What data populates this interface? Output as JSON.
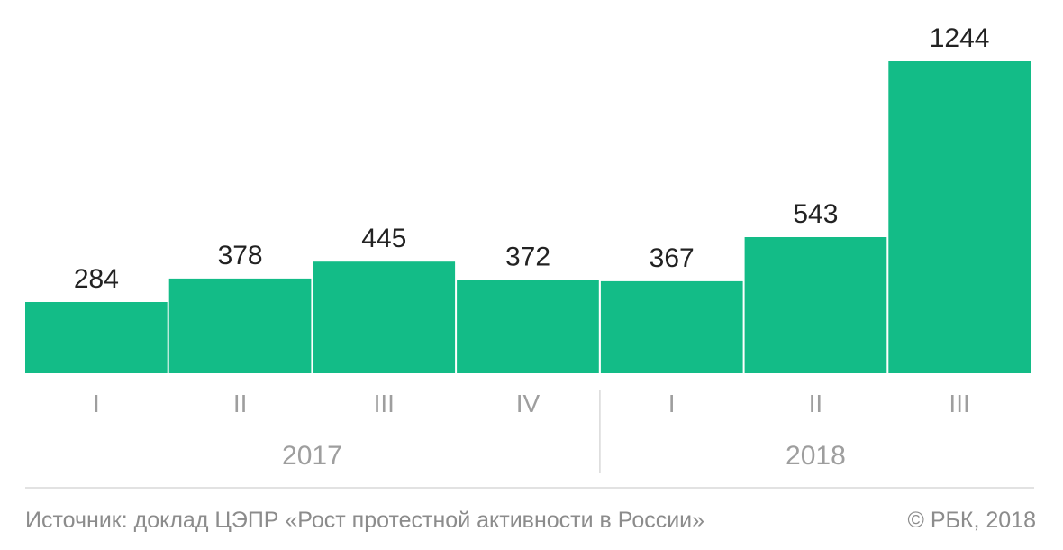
{
  "chart_data": {
    "type": "bar",
    "categories": [
      "I",
      "II",
      "III",
      "IV",
      "I",
      "II",
      "III"
    ],
    "groups": [
      {
        "label": "2017",
        "categories": [
          "I",
          "II",
          "III",
          "IV"
        ]
      },
      {
        "label": "2018",
        "categories": [
          "I",
          "II",
          "III"
        ]
      }
    ],
    "values": [
      284,
      378,
      445,
      372,
      367,
      543,
      1244
    ],
    "value_labels": [
      "284",
      "378",
      "445",
      "372",
      "367",
      "543",
      "1244"
    ],
    "ylim": [
      0,
      1244
    ],
    "grid": false,
    "legend": "none"
  },
  "colors": {
    "bar": "#13bc87",
    "value_text": "#222222",
    "axis_text": "#9e9e9e",
    "rule": "#d9d9d9"
  },
  "footer": {
    "source": "Источник: доклад ЦЭПР «Рост протестной активности в России»",
    "copyright": "© РБК, 2018"
  }
}
